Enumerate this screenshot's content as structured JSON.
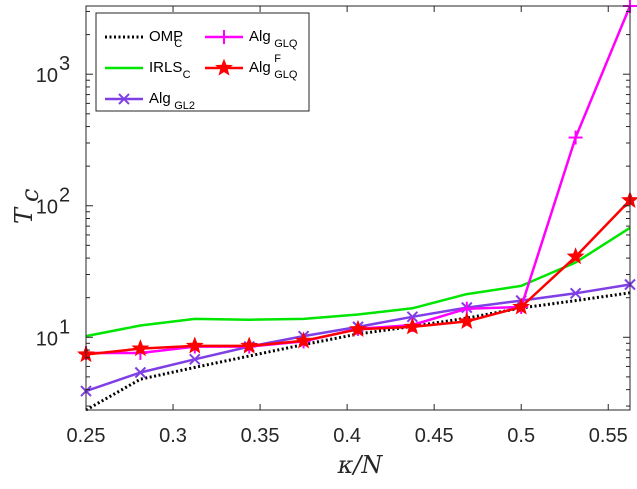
{
  "chart_data": {
    "type": "line",
    "title": "",
    "xlabel": "κ/N",
    "ylabel": "T",
    "ylabel_sub": "c",
    "yscale": "log",
    "xlim": [
      0.25,
      0.5625
    ],
    "ylim": [
      2.8,
      3300
    ],
    "x_ticks": [
      0.25,
      0.3,
      0.35,
      0.4,
      0.45,
      0.5,
      0.55
    ],
    "x_tick_labels": [
      "0.25",
      "0.3",
      "0.35",
      "0.4",
      "0.45",
      "0.5",
      "0.55"
    ],
    "y_ticks": [
      {
        "value": 10,
        "base": "10",
        "exp": "1"
      },
      {
        "value": 100,
        "base": "10",
        "exp": "2"
      },
      {
        "value": 1000,
        "base": "10",
        "exp": "3"
      }
    ],
    "legend": {
      "position": "top-left"
    },
    "series": [
      {
        "id": "omp",
        "name": "OMP",
        "sub": "C",
        "sup": "",
        "color": "#000000",
        "dash": "2,2.5",
        "width": 3,
        "marker": "none",
        "x": [
          0.25,
          0.28125,
          0.3125,
          0.34375,
          0.375,
          0.40625,
          0.4375,
          0.46875,
          0.5,
          0.53125,
          0.5625
        ],
        "y": [
          2.8,
          4.8,
          5.9,
          7.2,
          8.8,
          10.6,
          12.1,
          14.0,
          16.7,
          19.0,
          21.8
        ]
      },
      {
        "id": "irls",
        "name": "IRLS",
        "sub": "C",
        "sup": "",
        "color": "#00e600",
        "dash": "",
        "width": 2.5,
        "marker": "none",
        "x": [
          0.25,
          0.28125,
          0.3125,
          0.34375,
          0.375,
          0.40625,
          0.4375,
          0.46875,
          0.5,
          0.53125,
          0.5625
        ],
        "y": [
          10.2,
          12.3,
          13.8,
          13.6,
          13.8,
          14.9,
          16.6,
          21.3,
          24.6,
          37.0,
          68.0
        ]
      },
      {
        "id": "gl2",
        "name": "Alg",
        "sub": "GL2",
        "sup": "",
        "color": "#7f3fe6",
        "dash": "",
        "width": 2.5,
        "marker": "x",
        "x": [
          0.25,
          0.28125,
          0.3125,
          0.34375,
          0.375,
          0.40625,
          0.4375,
          0.46875,
          0.5,
          0.53125,
          0.5625
        ],
        "y": [
          3.9,
          5.4,
          6.8,
          8.5,
          10.2,
          12.0,
          14.3,
          16.8,
          19.0,
          21.6,
          25.2
        ]
      },
      {
        "id": "glq",
        "name": "Alg",
        "sub": "GLQ",
        "sup": "",
        "color": "#ff00ff",
        "dash": "",
        "width": 2.5,
        "marker": "plus",
        "x": [
          0.25,
          0.28125,
          0.3125,
          0.34375,
          0.375,
          0.40625,
          0.4375,
          0.46875,
          0.5,
          0.53125,
          0.5625
        ],
        "y": [
          7.6,
          7.6,
          8.5,
          8.5,
          9.3,
          11.6,
          12.4,
          16.5,
          17.0,
          330,
          3300
        ]
      },
      {
        "id": "glqf",
        "name": "Alg",
        "sub": "GLQ",
        "sup": "F",
        "color": "#ff0000",
        "dash": "",
        "width": 2.5,
        "marker": "star",
        "x": [
          0.25,
          0.28125,
          0.3125,
          0.34375,
          0.375,
          0.40625,
          0.4375,
          0.46875,
          0.5,
          0.53125,
          0.5625
        ],
        "y": [
          7.4,
          8.2,
          8.6,
          8.6,
          9.4,
          11.5,
          12.0,
          13.2,
          17.0,
          41.0,
          110.0
        ]
      }
    ]
  }
}
